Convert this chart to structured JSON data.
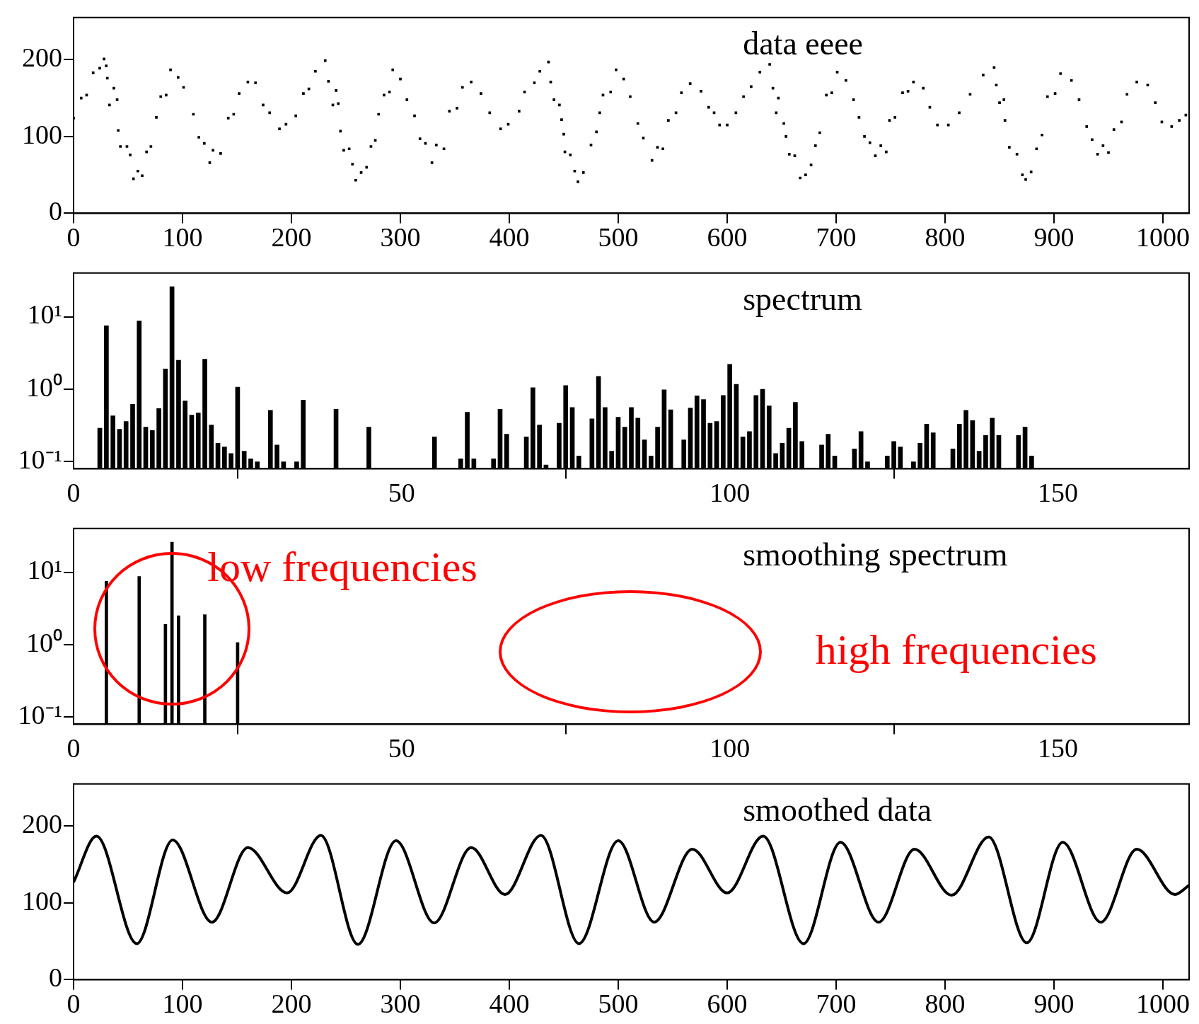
{
  "chart_data": [
    {
      "type": "scatter",
      "title": "data eeee",
      "color": "#000000",
      "marker": "square",
      "xlim": [
        0,
        1024
      ],
      "xticks": [
        0,
        100,
        200,
        300,
        400,
        500,
        600,
        700,
        800,
        900,
        1000
      ],
      "ylim": [
        0,
        255
      ],
      "yticks": [
        0,
        100,
        200
      ],
      "x": [
        0,
        7,
        12,
        18,
        24,
        28,
        30,
        31,
        33,
        37,
        40,
        41,
        43,
        49,
        52,
        55,
        59,
        63,
        67,
        71,
        76,
        80,
        85,
        89,
        96,
        101,
        110,
        115,
        120,
        125,
        128,
        135,
        142,
        147,
        152,
        160,
        167,
        174,
        180,
        189,
        195,
        204,
        211,
        216,
        222,
        231,
        234,
        238,
        241,
        243,
        245,
        248,
        253,
        256,
        259,
        264,
        269,
        273,
        277,
        280,
        285,
        290,
        293,
        300,
        306,
        313,
        318,
        323,
        329,
        333,
        340,
        345,
        352,
        357,
        365,
        374,
        382,
        392,
        399,
        409,
        414,
        423,
        428,
        436,
        438,
        441,
        446,
        448,
        450,
        451,
        456,
        460,
        463,
        468,
        475,
        480,
        483,
        486,
        493,
        498,
        505,
        511,
        518,
        523,
        531,
        536,
        541,
        546,
        553,
        558,
        566,
        576,
        583,
        588,
        593,
        600,
        608,
        615,
        622,
        630,
        639,
        642,
        645,
        647,
        652,
        654,
        657,
        662,
        667,
        672,
        677,
        681,
        685,
        691,
        696,
        701,
        709,
        716,
        721,
        726,
        731,
        736,
        741,
        746,
        749,
        754,
        761,
        766,
        771,
        780,
        786,
        793,
        803,
        813,
        823,
        835,
        845,
        847,
        850,
        854,
        855,
        859,
        866,
        871,
        874,
        879,
        884,
        889,
        894,
        901,
        906,
        916,
        923,
        930,
        935,
        940,
        945,
        950,
        955,
        962,
        967,
        976,
        986,
        993,
        999,
        1008,
        1015,
        1021
      ],
      "values": [
        124,
        150,
        154,
        183,
        189,
        201,
        192,
        176,
        141,
        163,
        148,
        108,
        87,
        87,
        76,
        45,
        55,
        49,
        80,
        87,
        125,
        152,
        154,
        187,
        177,
        164,
        129,
        99,
        91,
        66,
        82,
        78,
        124,
        129,
        156,
        171,
        170,
        141,
        131,
        110,
        116,
        127,
        156,
        162,
        185,
        199,
        172,
        141,
        160,
        143,
        107,
        82,
        84,
        64,
        43,
        53,
        60,
        87,
        95,
        129,
        154,
        158,
        187,
        175,
        148,
        127,
        97,
        91,
        66,
        89,
        84,
        133,
        137,
        164,
        171,
        156,
        131,
        110,
        116,
        133,
        158,
        170,
        185,
        197,
        171,
        148,
        141,
        122,
        103,
        80,
        76,
        55,
        41,
        53,
        89,
        106,
        131,
        154,
        158,
        187,
        175,
        152,
        117,
        98,
        69,
        86,
        84,
        121,
        131,
        157,
        169,
        159,
        138,
        131,
        115,
        115,
        131,
        152,
        165,
        184,
        194,
        163,
        131,
        150,
        117,
        100,
        77,
        75,
        46,
        50,
        63,
        88,
        105,
        154,
        157,
        184,
        173,
        148,
        125,
        100,
        92,
        75,
        88,
        80,
        121,
        125,
        157,
        159,
        171,
        163,
        138,
        115,
        115,
        131,
        155,
        180,
        190,
        167,
        144,
        148,
        121,
        86,
        77,
        50,
        44,
        54,
        84,
        102,
        152,
        156,
        182,
        173,
        148,
        113,
        96,
        77,
        88,
        79,
        109,
        119,
        155,
        171,
        167,
        144,
        119,
        113,
        121,
        128
      ]
    },
    {
      "type": "bar",
      "title": "spectrum",
      "color": "#000000",
      "log": "y",
      "xlim": [
        0,
        170
      ],
      "xticks": [
        0,
        50,
        100,
        150
      ],
      "ylim": [
        0.08,
        40
      ],
      "yticks": [
        {
          "value": 0.1,
          "label": "10⁻¹"
        },
        {
          "value": 1,
          "label": "10⁰"
        },
        {
          "value": 10,
          "label": "10¹"
        }
      ],
      "x": [
        4,
        5,
        6,
        7,
        8,
        9,
        10,
        11,
        12,
        13,
        14,
        15,
        16,
        17,
        18,
        19,
        20,
        21,
        22,
        23,
        24,
        25,
        26,
        27,
        28,
        30,
        31,
        32,
        34,
        35,
        40,
        45,
        55,
        59,
        60,
        61,
        64,
        65,
        66,
        69,
        70,
        71,
        72,
        74,
        75,
        76,
        77,
        79,
        80,
        81,
        82,
        83,
        84,
        85,
        86,
        87,
        88,
        89,
        90,
        91,
        93,
        94,
        95,
        96,
        97,
        98,
        99,
        100,
        101,
        102,
        103,
        104,
        105,
        106,
        107,
        108,
        109,
        110,
        111,
        114,
        115,
        116,
        119,
        120,
        121,
        124,
        125,
        126,
        128,
        129,
        130,
        131,
        134,
        135,
        136,
        137,
        138,
        139,
        140,
        141,
        144,
        145,
        146
      ],
      "values": [
        0.29,
        7.5,
        0.43,
        0.28,
        0.36,
        0.62,
        8.7,
        0.3,
        0.27,
        0.54,
        1.9,
        26,
        2.5,
        0.69,
        0.44,
        0.47,
        2.6,
        0.32,
        0.18,
        0.16,
        0.13,
        1.07,
        0.14,
        0.11,
        0.1,
        0.51,
        0.17,
        0.1,
        0.1,
        0.71,
        0.53,
        0.3,
        0.22,
        0.11,
        0.48,
        0.11,
        0.11,
        0.53,
        0.24,
        0.22,
        1.05,
        0.32,
        0.09,
        0.34,
        1.12,
        0.56,
        0.12,
        0.39,
        1.5,
        0.56,
        0.14,
        0.41,
        0.3,
        0.56,
        0.4,
        0.2,
        0.12,
        0.3,
        0.98,
        0.52,
        0.2,
        0.55,
        0.81,
        0.72,
        0.34,
        0.36,
        0.82,
        2.2,
        1.17,
        0.22,
        0.26,
        0.82,
        1.0,
        0.59,
        0.13,
        0.18,
        0.29,
        0.66,
        0.19,
        0.17,
        0.24,
        0.12,
        0.15,
        0.26,
        0.1,
        0.12,
        0.19,
        0.16,
        0.1,
        0.18,
        0.33,
        0.25,
        0.15,
        0.33,
        0.51,
        0.37,
        0.14,
        0.23,
        0.4,
        0.23,
        0.23,
        0.3,
        0.12
      ]
    },
    {
      "type": "bar",
      "title": "smoothing spectrum",
      "color": "#000000",
      "log": "y",
      "xlim": [
        0,
        170
      ],
      "xticks": [
        0,
        50,
        100,
        150
      ],
      "ylim": [
        0.08,
        40
      ],
      "yticks": [
        {
          "value": 0.1,
          "label": "10⁻¹"
        },
        {
          "value": 1,
          "label": "10⁰"
        },
        {
          "value": 10,
          "label": "10¹"
        }
      ],
      "x": [
        5,
        10,
        14,
        15,
        16,
        20,
        25
      ],
      "values": [
        7.5,
        8.7,
        1.9,
        26,
        2.5,
        2.6,
        1.07
      ],
      "annotations": [
        "low frequencies",
        "high frequencies"
      ]
    },
    {
      "type": "line",
      "title": "smoothed data",
      "color": "#000000",
      "marker": "none",
      "line_style": "solid",
      "xlim": [
        0,
        1024
      ],
      "xticks": [
        0,
        100,
        200,
        300,
        400,
        500,
        600,
        700,
        800,
        900,
        1000
      ],
      "ylim": [
        0,
        255
      ],
      "yticks": [
        0,
        100,
        200
      ],
      "x": [
        0,
        21,
        58,
        91,
        127,
        160,
        196,
        227,
        261,
        296,
        331,
        365,
        396,
        429,
        464,
        500,
        533,
        568,
        600,
        633,
        670,
        704,
        739,
        772,
        806,
        840,
        875,
        908,
        943,
        976,
        1011,
        1024
      ],
      "values": [
        127,
        187,
        47,
        182,
        75,
        172,
        113,
        188,
        46,
        181,
        74,
        172,
        111,
        188,
        47,
        181,
        75,
        170,
        113,
        187,
        47,
        179,
        75,
        170,
        110,
        186,
        48,
        179,
        75,
        170,
        111,
        123
      ]
    }
  ]
}
